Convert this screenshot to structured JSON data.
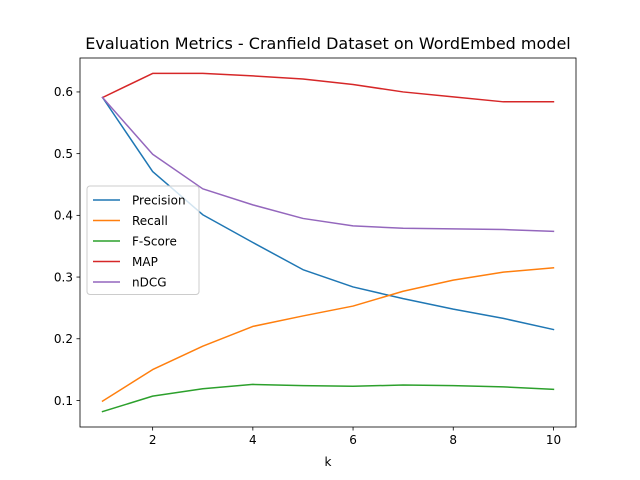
{
  "chart_data": {
    "type": "line",
    "title": "Evaluation Metrics - Cranfield Dataset on WordEmbed model",
    "xlabel": "k",
    "ylabel": "",
    "x": [
      1,
      2,
      3,
      4,
      5,
      6,
      7,
      8,
      9,
      10
    ],
    "xlim": [
      0.55,
      10.45
    ],
    "ylim": [
      0.057,
      0.655
    ],
    "xticks": [
      2,
      4,
      6,
      8,
      10
    ],
    "yticks": [
      0.1,
      0.2,
      0.3,
      0.4,
      0.5,
      0.6
    ],
    "grid": false,
    "legend_position": "center-left",
    "series": [
      {
        "name": "Precision",
        "color": "#1f77b4",
        "values": [
          0.591,
          0.471,
          0.401,
          0.356,
          0.312,
          0.284,
          0.265,
          0.248,
          0.233,
          0.215
        ]
      },
      {
        "name": "Recall",
        "color": "#ff7f0e",
        "values": [
          0.099,
          0.15,
          0.188,
          0.22,
          0.237,
          0.253,
          0.277,
          0.295,
          0.308,
          0.315
        ]
      },
      {
        "name": "F-Score",
        "color": "#2ca02c",
        "values": [
          0.082,
          0.107,
          0.119,
          0.126,
          0.124,
          0.123,
          0.125,
          0.124,
          0.122,
          0.118
        ]
      },
      {
        "name": "MAP",
        "color": "#d62728",
        "values": [
          0.591,
          0.63,
          0.63,
          0.626,
          0.621,
          0.612,
          0.6,
          0.592,
          0.584,
          0.584
        ]
      },
      {
        "name": "nDCG",
        "color": "#9467bd",
        "values": [
          0.591,
          0.499,
          0.443,
          0.417,
          0.395,
          0.383,
          0.379,
          0.378,
          0.377,
          0.374
        ]
      }
    ]
  }
}
